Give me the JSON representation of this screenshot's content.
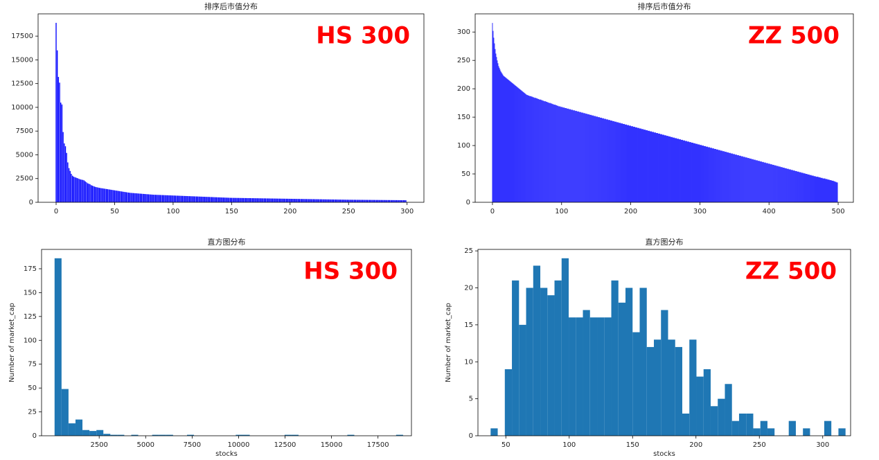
{
  "chart_data": [
    {
      "type": "bar",
      "title": "排序后市值分布",
      "annotation": "HS 300",
      "annotation_color": "red",
      "color": "#0000ff",
      "values": [
        18900,
        16000,
        13200,
        12600,
        10500,
        10300,
        7400,
        6200,
        5900,
        5200,
        4200,
        3600,
        3300,
        3000,
        2800,
        2700,
        2650,
        2600,
        2550,
        2500,
        2450,
        2400,
        2380,
        2350,
        2300,
        2200,
        2100,
        2000,
        1950,
        1900,
        1800,
        1750,
        1700,
        1650,
        1600,
        1580,
        1550,
        1520,
        1500,
        1480,
        1460,
        1440,
        1420,
        1400,
        1380,
        1360,
        1340,
        1320,
        1300,
        1280,
        1260,
        1240,
        1220,
        1200,
        1180,
        1160,
        1140,
        1120,
        1100,
        1080,
        1060,
        1040,
        1020,
        1000,
        990,
        980,
        970,
        960,
        950,
        940,
        930,
        920,
        910,
        900,
        890,
        880,
        870,
        860,
        850,
        840,
        830,
        820,
        810,
        800,
        795,
        790,
        785,
        780,
        775,
        770,
        765,
        760,
        755,
        750,
        745,
        740,
        735,
        730,
        725,
        720,
        715,
        710,
        705,
        700,
        695,
        690,
        685,
        680,
        675,
        670,
        665,
        660,
        655,
        650,
        645,
        640,
        635,
        630,
        625,
        620,
        615,
        610,
        605,
        600,
        595,
        590,
        585,
        580,
        575,
        570,
        565,
        560,
        555,
        550,
        545,
        540,
        535,
        530,
        525,
        520,
        515,
        510,
        505,
        500,
        495,
        490,
        485,
        480,
        475,
        470,
        468,
        466,
        464,
        462,
        460,
        458,
        456,
        454,
        452,
        450,
        448,
        446,
        444,
        442,
        440,
        438,
        436,
        434,
        432,
        430,
        428,
        426,
        424,
        422,
        420,
        418,
        416,
        414,
        412,
        410,
        408,
        406,
        404,
        402,
        400,
        398,
        396,
        394,
        392,
        390,
        388,
        386,
        384,
        382,
        380,
        378,
        376,
        374,
        372,
        370,
        368,
        366,
        364,
        362,
        360,
        358,
        356,
        354,
        352,
        350,
        348,
        346,
        344,
        342,
        340,
        338,
        336,
        334,
        332,
        330,
        328,
        326,
        324,
        322,
        320,
        318,
        316,
        314,
        312,
        310,
        308,
        306,
        304,
        302,
        300,
        298,
        296,
        294,
        292,
        290,
        288,
        286,
        284,
        282,
        280,
        278,
        276,
        274,
        272,
        270,
        268,
        267,
        266,
        265,
        264,
        263,
        262,
        261,
        260,
        259,
        258,
        257,
        256,
        255,
        254,
        253,
        252,
        251,
        250,
        249,
        248,
        247,
        246,
        245,
        244,
        243,
        242,
        241,
        240,
        239,
        238,
        237,
        236,
        235,
        234,
        233,
        232,
        231,
        230,
        229,
        228,
        227,
        226,
        225,
        224,
        223,
        222,
        221,
        220,
        219
      ],
      "xlim": [
        -15.4,
        314.4
      ],
      "ylim": [
        0,
        19845
      ],
      "xticks": [
        0,
        50,
        100,
        150,
        200,
        250,
        300
      ],
      "yticks": [
        0,
        2500,
        5000,
        7500,
        10000,
        12500,
        15000,
        17500
      ]
    },
    {
      "type": "bar",
      "title": "排序后市值分布",
      "annotation": "ZZ 500",
      "annotation_color": "red",
      "color": "#0000ff",
      "values": [
        316,
        302,
        290,
        280,
        270,
        262,
        256,
        250,
        245,
        240,
        237,
        234,
        231,
        229,
        227,
        225,
        223,
        222,
        221,
        220,
        219,
        218,
        217,
        216,
        215,
        214,
        213,
        212,
        211,
        210,
        209,
        208,
        207,
        206,
        205,
        204,
        203,
        202,
        201,
        200,
        199,
        198,
        197,
        196,
        195,
        194,
        193,
        192,
        191,
        190,
        189,
        189,
        188,
        188,
        187,
        187,
        187,
        186,
        186,
        185,
        185,
        184,
        184,
        184,
        183,
        183,
        182,
        182,
        181,
        181,
        181,
        180,
        180,
        179,
        179,
        178,
        178,
        178,
        177,
        177,
        176,
        176,
        175,
        175,
        175,
        174,
        174,
        173,
        173,
        172,
        172,
        172,
        171,
        171,
        170,
        170,
        169,
        169,
        169,
        168,
        168,
        168,
        167,
        167,
        167,
        166,
        166,
        166,
        165,
        165,
        165,
        164,
        164,
        164,
        163,
        163,
        163,
        162,
        162,
        162,
        161,
        161,
        161,
        160,
        160,
        160,
        159,
        159,
        159,
        158,
        158,
        158,
        157,
        157,
        157,
        156,
        156,
        156,
        155,
        155,
        155,
        154,
        154,
        154,
        153,
        153,
        153,
        152,
        152,
        152,
        151,
        151,
        151,
        150,
        150,
        150,
        149,
        149,
        149,
        148,
        148,
        148,
        147,
        147,
        147,
        146,
        146,
        146,
        145,
        145,
        145,
        144,
        144,
        144,
        143,
        143,
        143,
        142,
        142,
        142,
        141,
        141,
        141,
        140,
        140,
        140,
        139,
        139,
        139,
        138,
        138,
        138,
        137,
        137,
        137,
        136,
        136,
        136,
        135,
        135,
        135,
        134,
        134,
        134,
        133,
        133,
        133,
        132,
        132,
        132,
        131,
        131,
        131,
        130,
        130,
        130,
        129,
        129,
        129,
        128,
        128,
        128,
        127,
        127,
        127,
        126,
        126,
        126,
        125,
        125,
        125,
        124,
        124,
        124,
        123,
        123,
        123,
        122,
        122,
        122,
        121,
        121,
        121,
        120,
        120,
        120,
        119,
        119,
        119,
        118,
        118,
        118,
        117,
        117,
        117,
        116,
        116,
        116,
        115,
        115,
        115,
        114,
        114,
        114,
        113,
        113,
        113,
        112,
        112,
        112,
        111,
        111,
        111,
        110,
        110,
        110,
        109,
        109,
        109,
        108,
        108,
        108,
        107,
        107,
        107,
        106,
        106,
        106,
        105,
        105,
        105,
        104,
        104,
        104,
        103,
        103,
        103,
        102,
        102,
        102,
        101,
        101,
        101,
        100,
        100,
        100,
        99,
        99,
        99,
        98,
        98,
        98,
        97,
        97,
        97,
        96,
        96,
        96,
        95,
        95,
        95,
        94,
        94,
        94,
        93,
        93,
        93,
        92,
        92,
        92,
        91,
        91,
        91,
        90,
        90,
        90,
        89,
        89,
        89,
        88,
        88,
        88,
        87,
        87,
        87,
        86,
        86,
        86,
        85,
        85,
        85,
        84,
        84,
        84,
        83,
        83,
        83,
        82,
        82,
        82,
        81,
        81,
        81,
        80,
        80,
        80,
        79,
        79,
        79,
        78,
        78,
        78,
        77,
        77,
        77,
        76,
        76,
        76,
        75,
        75,
        75,
        74,
        74,
        74,
        73,
        73,
        73,
        72,
        72,
        72,
        71,
        71,
        71,
        70,
        70,
        70,
        69,
        69,
        69,
        68,
        68,
        68,
        67,
        67,
        67,
        66,
        66,
        66,
        65,
        65,
        65,
        64,
        64,
        64,
        63,
        63,
        63,
        62,
        62,
        62,
        61,
        61,
        61,
        60,
        60,
        60,
        59,
        59,
        59,
        58,
        58,
        58,
        57,
        57,
        57,
        56,
        56,
        56,
        55,
        55,
        55,
        54,
        54,
        54,
        53,
        53,
        53,
        52,
        52,
        52,
        51,
        51,
        51,
        50,
        50,
        50,
        49,
        49,
        49,
        48,
        48,
        48,
        47,
        47,
        47,
        46,
        46,
        46,
        45,
        45,
        45,
        45,
        44,
        44,
        44,
        43,
        43,
        43,
        42,
        42,
        42,
        42,
        41,
        41,
        41,
        40,
        40,
        40,
        39,
        39,
        39,
        38,
        38,
        38,
        37,
        37,
        36,
        36,
        35,
        35
      ],
      "xlim": [
        -25,
        522
      ],
      "ylim": [
        0,
        332
      ],
      "xticks": [
        0,
        100,
        200,
        300,
        400,
        500
      ],
      "yticks": [
        0,
        50,
        100,
        150,
        200,
        250,
        300
      ]
    },
    {
      "type": "histogram",
      "title": "直方图分布",
      "annotation": "HS 300",
      "annotation_color": "red",
      "color": "#1f77b4",
      "xlabel": "stocks",
      "ylabel": "Number of market_cap",
      "bins": [
        100,
        475,
        850,
        1225,
        1600,
        1975,
        2350,
        2725,
        3100,
        3475,
        3850,
        4225,
        4600,
        4975,
        5350,
        5725,
        6100,
        6475,
        6850,
        7225,
        7600,
        7975,
        8350,
        8725,
        9100,
        9475,
        9850,
        10225,
        10600,
        10975,
        11350,
        11725,
        12100,
        12475,
        12850,
        13225,
        13600,
        13975,
        14350,
        14725,
        15100,
        15475,
        15850,
        16225,
        16600,
        16975,
        17350,
        17725,
        18100,
        18475,
        18850
      ],
      "values": [
        186,
        49,
        13,
        17,
        6,
        5,
        6,
        2,
        1,
        1,
        0,
        1,
        0,
        0,
        1,
        1,
        1,
        0,
        0,
        1,
        0,
        0,
        0,
        0,
        0,
        0,
        1,
        1,
        0,
        0,
        0,
        0,
        0,
        1,
        1,
        0,
        0,
        0,
        0,
        0,
        0,
        0,
        1,
        0,
        0,
        0,
        0,
        0,
        0,
        1
      ],
      "xlim": [
        -600,
        19300
      ],
      "ylim": [
        0,
        195.3
      ],
      "xticks": [
        2500,
        5000,
        7500,
        10000,
        12500,
        15000,
        17500
      ],
      "yticks": [
        0,
        25,
        50,
        75,
        100,
        125,
        150,
        175
      ]
    },
    {
      "type": "histogram",
      "title": "直方图分布",
      "annotation": "ZZ 500",
      "annotation_color": "red",
      "color": "#1f77b4",
      "xlabel": "stocks",
      "ylabel": "Number of market_cap",
      "bins": [
        38,
        43.6,
        49.2,
        54.8,
        60.4,
        66,
        71.6,
        77.2,
        82.8,
        88.4,
        94,
        99.6,
        105.2,
        110.8,
        116.4,
        122,
        127.6,
        133.2,
        138.8,
        144.4,
        150,
        155.6,
        161.2,
        166.8,
        172.4,
        178,
        183.6,
        189.2,
        194.8,
        200.4,
        206,
        211.6,
        217.2,
        222.8,
        228.4,
        234,
        239.6,
        245.2,
        250.8,
        256.4,
        262,
        267.6,
        273.2,
        278.8,
        284.4,
        290,
        295.6,
        301.2,
        306.8,
        312.4,
        318
      ],
      "values": [
        1,
        0,
        9,
        21,
        15,
        20,
        23,
        20,
        19,
        21,
        24,
        16,
        16,
        17,
        16,
        16,
        16,
        21,
        18,
        20,
        14,
        20,
        12,
        13,
        17,
        13,
        12,
        3,
        13,
        8,
        9,
        4,
        5,
        7,
        2,
        3,
        3,
        1,
        2,
        1,
        0,
        0,
        2,
        0,
        1,
        0,
        0,
        2,
        0,
        1
      ],
      "xlim": [
        28,
        322
      ],
      "ylim": [
        0,
        25.2
      ],
      "xticks": [
        50,
        100,
        150,
        200,
        250,
        300
      ],
      "yticks": [
        0,
        5,
        10,
        15,
        20,
        25
      ]
    }
  ]
}
